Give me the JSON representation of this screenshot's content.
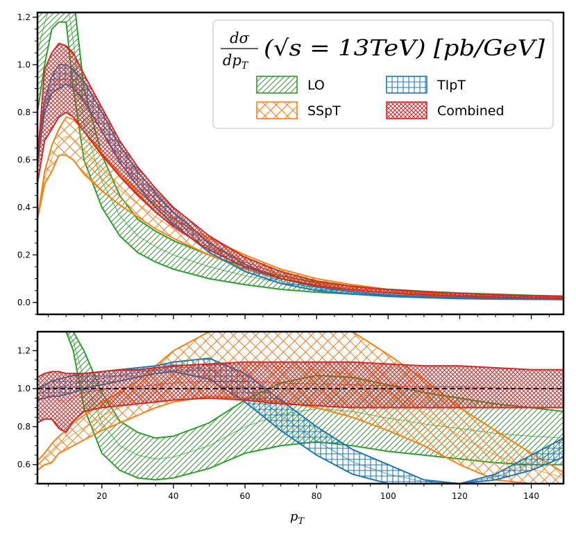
{
  "chart_data": [
    {
      "type": "area",
      "panel": "main",
      "title": "",
      "xlabel": "",
      "ylabel": "",
      "xlim": [
        2,
        149
      ],
      "ylim": [
        -0.05,
        1.22
      ],
      "yticks": [
        0.0,
        0.2,
        0.4,
        0.6,
        0.8,
        1.0,
        1.2
      ],
      "ytick_labels": [
        "0.0",
        "0.2",
        "0.4",
        "0.6",
        "0.8",
        "1.0",
        "1.2"
      ],
      "x": [
        2,
        4,
        6,
        8,
        10,
        12,
        15,
        20,
        25,
        30,
        35,
        40,
        50,
        60,
        70,
        80,
        90,
        100,
        110,
        120,
        130,
        140,
        149
      ],
      "series": [
        {
          "name": "LO",
          "color": "#2ca02c",
          "hatch": "diagonal",
          "lower": [
            0.8,
            1.0,
            1.15,
            1.18,
            1.18,
            0.9,
            0.6,
            0.4,
            0.28,
            0.21,
            0.17,
            0.14,
            0.1,
            0.075,
            0.055,
            0.043,
            0.035,
            0.03,
            0.026,
            0.023,
            0.02,
            0.018,
            0.016
          ],
          "upper": [
            1.3,
            1.35,
            1.4,
            1.45,
            1.4,
            1.3,
            0.9,
            0.62,
            0.45,
            0.35,
            0.3,
            0.26,
            0.2,
            0.15,
            0.11,
            0.085,
            0.068,
            0.056,
            0.047,
            0.04,
            0.035,
            0.03,
            0.027
          ]
        },
        {
          "name": "SSpT",
          "color": "#ff7f0e",
          "hatch": "crossdiag",
          "lower": [
            0.35,
            0.5,
            0.55,
            0.62,
            0.62,
            0.6,
            0.54,
            0.47,
            0.41,
            0.36,
            0.31,
            0.27,
            0.2,
            0.14,
            0.1,
            0.075,
            0.055,
            0.04,
            0.03,
            0.022,
            0.017,
            0.013,
            0.012
          ],
          "upper": [
            0.35,
            0.55,
            0.66,
            0.73,
            0.78,
            0.77,
            0.72,
            0.63,
            0.54,
            0.47,
            0.41,
            0.35,
            0.27,
            0.2,
            0.14,
            0.1,
            0.075,
            0.055,
            0.04,
            0.03,
            0.023,
            0.018,
            0.016
          ]
        },
        {
          "name": "TIpT",
          "color": "#1f77b4",
          "hatch": "grid",
          "lower": [
            0.6,
            0.8,
            0.88,
            0.9,
            0.92,
            0.9,
            0.85,
            0.72,
            0.59,
            0.49,
            0.4,
            0.33,
            0.21,
            0.13,
            0.08,
            0.05,
            0.035,
            0.025,
            0.02,
            0.016,
            0.014,
            0.013,
            0.012
          ],
          "upper": [
            0.65,
            0.85,
            0.95,
            1.0,
            1.0,
            0.98,
            0.93,
            0.8,
            0.66,
            0.55,
            0.46,
            0.38,
            0.25,
            0.16,
            0.1,
            0.065,
            0.045,
            0.032,
            0.025,
            0.02,
            0.017,
            0.015,
            0.014
          ]
        },
        {
          "name": "Combined",
          "color": "#d62728",
          "hatch": "crosshatch",
          "lower": [
            0.5,
            0.68,
            0.73,
            0.78,
            0.8,
            0.78,
            0.72,
            0.62,
            0.53,
            0.45,
            0.38,
            0.32,
            0.22,
            0.15,
            0.1,
            0.07,
            0.052,
            0.04,
            0.032,
            0.026,
            0.022,
            0.019,
            0.017
          ],
          "upper": [
            0.6,
            0.98,
            1.05,
            1.09,
            1.08,
            1.05,
            0.96,
            0.82,
            0.68,
            0.57,
            0.48,
            0.4,
            0.28,
            0.19,
            0.13,
            0.09,
            0.068,
            0.054,
            0.045,
            0.038,
            0.032,
            0.028,
            0.025
          ]
        }
      ],
      "legend": {
        "title": "dσ/dp_T (√s = 13TeV) [pb/GeV]",
        "title_frac_num": "dσ",
        "title_frac_den": "dp",
        "title_frac_den_sub": "T",
        "title_rest": "(√s = 13TeV) [pb/GeV]",
        "entries": [
          "LO",
          "TIpT",
          "SSpT",
          "Combined"
        ],
        "placement": "top-right"
      }
    },
    {
      "type": "area",
      "panel": "ratio",
      "xlabel": "p_T",
      "xlabel_main": "p",
      "xlabel_sub": "T",
      "xlim": [
        2,
        149
      ],
      "ylim": [
        0.5,
        1.3
      ],
      "xticks": [
        20,
        40,
        60,
        80,
        100,
        120,
        140
      ],
      "xtick_labels": [
        "20",
        "40",
        "60",
        "80",
        "100",
        "120",
        "140"
      ],
      "yticks": [
        0.6,
        0.8,
        1.0,
        1.2
      ],
      "ytick_labels": [
        "0.6",
        "0.8",
        "1.0",
        "1.2"
      ],
      "reference_line": 1.0,
      "x": [
        2,
        4,
        6,
        8,
        10,
        12,
        15,
        20,
        25,
        30,
        35,
        40,
        50,
        60,
        70,
        80,
        90,
        100,
        110,
        120,
        130,
        140,
        149
      ],
      "series": [
        {
          "name": "LO",
          "color": "#2ca02c",
          "hatch": "diagonal",
          "lower": [
            1.3,
            1.3,
            1.3,
            1.3,
            1.3,
            1.2,
            0.9,
            0.66,
            0.57,
            0.53,
            0.52,
            0.53,
            0.58,
            0.66,
            0.7,
            0.72,
            0.7,
            0.67,
            0.65,
            0.63,
            0.61,
            0.6,
            0.6
          ],
          "upper": [
            1.3,
            1.3,
            1.3,
            1.3,
            1.3,
            1.3,
            1.2,
            0.98,
            0.83,
            0.77,
            0.74,
            0.75,
            0.82,
            0.94,
            1.03,
            1.07,
            1.06,
            1.02,
            0.98,
            0.95,
            0.92,
            0.9,
            0.88
          ]
        },
        {
          "name": "SSpT",
          "color": "#ff7f0e",
          "hatch": "crossdiag",
          "lower": [
            0.57,
            0.6,
            0.61,
            0.66,
            0.68,
            0.7,
            0.73,
            0.78,
            0.82,
            0.86,
            0.9,
            0.93,
            0.96,
            0.95,
            0.93,
            0.9,
            0.85,
            0.78,
            0.7,
            0.6,
            0.52,
            0.5,
            0.5
          ],
          "upper": [
            0.62,
            0.66,
            0.71,
            0.75,
            0.78,
            0.82,
            0.86,
            0.93,
            0.98,
            1.04,
            1.12,
            1.2,
            1.3,
            1.3,
            1.3,
            1.3,
            1.3,
            1.18,
            1.05,
            0.9,
            0.78,
            0.66,
            0.56
          ]
        },
        {
          "name": "TIpT",
          "color": "#1f77b4",
          "hatch": "grid",
          "lower": [
            0.94,
            0.95,
            0.96,
            0.96,
            0.97,
            0.98,
            1.0,
            1.02,
            1.04,
            1.06,
            1.08,
            1.09,
            1.05,
            0.93,
            0.78,
            0.65,
            0.55,
            0.5,
            0.5,
            0.5,
            0.52,
            0.57,
            0.64
          ],
          "upper": [
            1.0,
            1.02,
            1.04,
            1.05,
            1.06,
            1.07,
            1.08,
            1.09,
            1.1,
            1.11,
            1.12,
            1.14,
            1.16,
            1.08,
            0.94,
            0.8,
            0.68,
            0.6,
            0.52,
            0.5,
            0.55,
            0.65,
            0.74
          ]
        },
        {
          "name": "Combined",
          "color": "#d62728",
          "hatch": "crosshatch",
          "lower": [
            0.82,
            0.84,
            0.84,
            0.79,
            0.77,
            0.83,
            0.88,
            0.9,
            0.91,
            0.92,
            0.93,
            0.94,
            0.95,
            0.94,
            0.92,
            0.91,
            0.9,
            0.9,
            0.9,
            0.9,
            0.9,
            0.9,
            0.9
          ],
          "upper": [
            1.06,
            1.08,
            1.09,
            1.09,
            1.08,
            1.08,
            1.08,
            1.09,
            1.1,
            1.1,
            1.11,
            1.12,
            1.13,
            1.14,
            1.14,
            1.14,
            1.14,
            1.13,
            1.12,
            1.12,
            1.11,
            1.1,
            1.1
          ]
        }
      ]
    }
  ]
}
